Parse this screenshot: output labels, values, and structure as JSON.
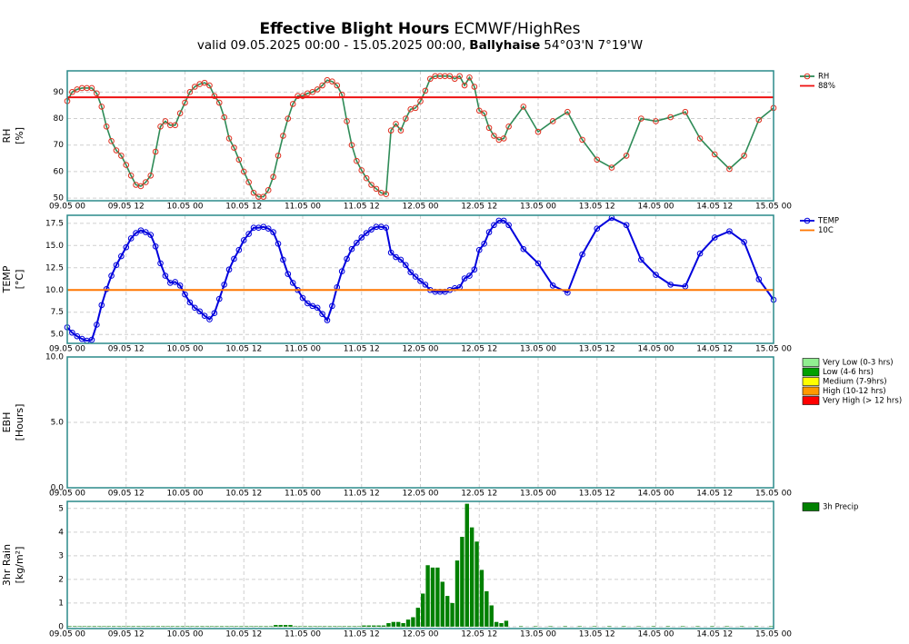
{
  "header": {
    "title": "Effective Blight Hours",
    "model": "ECMWF/HighRes",
    "validity": "valid 09.05.2025 00:00 - 15.05.2025 00:00,",
    "station": "Ballyhaise",
    "coords": "54°03'N 7°19'W"
  },
  "chart_data": [
    {
      "type": "line",
      "ylabel": [
        "RH",
        "[%]"
      ],
      "xlim": [
        0,
        144
      ],
      "ylim": [
        49,
        98
      ],
      "yticks": [
        50,
        60,
        70,
        80,
        90
      ],
      "grid": true,
      "xticks": [
        {
          "value": 0,
          "label": "09.05 00"
        },
        {
          "value": 12,
          "label": "09.05 12"
        },
        {
          "value": 24,
          "label": "10.05 00"
        },
        {
          "value": 36,
          "label": "10.05 12"
        },
        {
          "value": 48,
          "label": "11.05 00"
        },
        {
          "value": 60,
          "label": "11.05 12"
        },
        {
          "value": 72,
          "label": "12.05 00"
        },
        {
          "value": 84,
          "label": "12.05 12"
        },
        {
          "value": 96,
          "label": "13.05 00"
        },
        {
          "value": 108,
          "label": "13.05 12"
        },
        {
          "value": 120,
          "label": "14.05 00"
        },
        {
          "value": 132,
          "label": "14.05 12"
        },
        {
          "value": 144,
          "label": "15.05 00"
        }
      ],
      "x": [
        0,
        1,
        2,
        3,
        4,
        5,
        6,
        7,
        8,
        9,
        10,
        11,
        12,
        13,
        14,
        15,
        16,
        17,
        18,
        19,
        20,
        21,
        22,
        23,
        24,
        25,
        26,
        27,
        28,
        29,
        30,
        31,
        32,
        33,
        34,
        35,
        36,
        37,
        38,
        39,
        40,
        41,
        42,
        43,
        44,
        45,
        46,
        47,
        48,
        49,
        50,
        51,
        52,
        53,
        54,
        55,
        56,
        57,
        58,
        59,
        60,
        61,
        62,
        63,
        64,
        65,
        66,
        67,
        68,
        69,
        70,
        71,
        72,
        73,
        74,
        75,
        76,
        77,
        78,
        79,
        80,
        81,
        82,
        83,
        84,
        85,
        86,
        87,
        88,
        89,
        90,
        93,
        96,
        99,
        102,
        105,
        108,
        111,
        114,
        117,
        120,
        123,
        126,
        129,
        132,
        135,
        138,
        141,
        144
      ],
      "series": [
        {
          "name": "RH",
          "color": "#2e8b57",
          "marker_color": "#e03020",
          "values": [
            86.6,
            90,
            91,
            91.5,
            91.5,
            91.5,
            89.5,
            84.5,
            77,
            71.5,
            68,
            66,
            62.5,
            58.5,
            55,
            54.5,
            56,
            58.5,
            67.5,
            77,
            79,
            77.5,
            77.5,
            82,
            86,
            90,
            92,
            93,
            93.5,
            92.5,
            88.5,
            86,
            80.5,
            72.5,
            69,
            64.5,
            60,
            56,
            52,
            50.5,
            50.5,
            53,
            58,
            66,
            73.5,
            80,
            85.5,
            88.5,
            88.5,
            89.5,
            90,
            91,
            92.5,
            94.5,
            94,
            92.5,
            89,
            79,
            70,
            64,
            60.5,
            57.5,
            55,
            53.5,
            52,
            51.5,
            75.5,
            78,
            75.5,
            80,
            83.5,
            84,
            86.5,
            90.5,
            95,
            96,
            96,
            96,
            96,
            95,
            96,
            92.5,
            95.5,
            92,
            83,
            82,
            76.5,
            73.5,
            72,
            72.5,
            77,
            84.5,
            75,
            79,
            82.5,
            72,
            64.5,
            61.5,
            66,
            80,
            79,
            80.5,
            82.5,
            72.5,
            66.5,
            61,
            66,
            79.5,
            84
          ]
        },
        {
          "name": "88%",
          "color": "#ee1111",
          "value": 88
        }
      ]
    },
    {
      "type": "line",
      "ylabel": [
        "TEMP",
        "[°C]"
      ],
      "xlim": [
        0,
        144
      ],
      "ylim": [
        4.0,
        18.4
      ],
      "grid": true,
      "yticks": [
        {
          "value": 5,
          "label": "5.0"
        },
        {
          "value": 7.5,
          "label": "7.5"
        },
        {
          "value": 10,
          "label": "10.0"
        },
        {
          "value": 12.5,
          "label": "12.5"
        },
        {
          "value": 15,
          "label": "15.0"
        },
        {
          "value": 17.5,
          "label": "17.5"
        }
      ],
      "xticks": [
        {
          "value": 0,
          "label": "09.05 00"
        },
        {
          "value": 12,
          "label": "09.05 12"
        },
        {
          "value": 24,
          "label": "10.05 00"
        },
        {
          "value": 36,
          "label": "10.05 12"
        },
        {
          "value": 48,
          "label": "11.05 00"
        },
        {
          "value": 60,
          "label": "11.05 12"
        },
        {
          "value": 72,
          "label": "12.05 00"
        },
        {
          "value": 84,
          "label": "12.05 12"
        },
        {
          "value": 96,
          "label": "13.05 00"
        },
        {
          "value": 108,
          "label": "13.05 12"
        },
        {
          "value": 120,
          "label": "14.05 00"
        },
        {
          "value": 132,
          "label": "14.05 12"
        },
        {
          "value": 144,
          "label": "15.05 00"
        }
      ],
      "x": [
        0,
        1,
        2,
        3,
        4,
        5,
        6,
        7,
        8,
        9,
        10,
        11,
        12,
        13,
        14,
        15,
        16,
        17,
        18,
        19,
        20,
        21,
        22,
        23,
        24,
        25,
        26,
        27,
        28,
        29,
        30,
        31,
        32,
        33,
        34,
        35,
        36,
        37,
        38,
        39,
        40,
        41,
        42,
        43,
        44,
        45,
        46,
        47,
        48,
        49,
        50,
        51,
        52,
        53,
        54,
        55,
        56,
        57,
        58,
        59,
        60,
        61,
        62,
        63,
        64,
        65,
        66,
        67,
        68,
        69,
        70,
        71,
        72,
        73,
        74,
        75,
        76,
        77,
        78,
        79,
        80,
        81,
        82,
        83,
        84,
        85,
        86,
        87,
        88,
        89,
        90,
        93,
        96,
        99,
        102,
        105,
        108,
        111,
        114,
        117,
        120,
        123,
        126,
        129,
        132,
        135,
        138,
        141,
        144
      ],
      "series": [
        {
          "name": "TEMP",
          "color": "#0000dd",
          "marker_color": "#0000dd",
          "values": [
            5.8,
            5.2,
            4.8,
            4.5,
            4.3,
            4.4,
            6.1,
            8.3,
            10.1,
            11.6,
            12.8,
            13.8,
            14.8,
            15.8,
            16.4,
            16.7,
            16.5,
            16.2,
            14.9,
            13.0,
            11.6,
            10.8,
            10.9,
            10.5,
            9.5,
            8.6,
            8.0,
            7.6,
            7.1,
            6.7,
            7.4,
            9.0,
            10.6,
            12.3,
            13.5,
            14.5,
            15.6,
            16.3,
            17.0,
            17.0,
            17.1,
            16.9,
            16.5,
            15.2,
            13.4,
            11.8,
            10.8,
            10.0,
            9.1,
            8.5,
            8.2,
            8.0,
            7.3,
            6.6,
            8.2,
            10.3,
            12.1,
            13.5,
            14.6,
            15.3,
            15.9,
            16.4,
            16.8,
            17.1,
            17.1,
            17.0,
            14.2,
            13.7,
            13.4,
            12.8,
            12.0,
            11.5,
            11.0,
            10.6,
            10.0,
            9.8,
            9.8,
            9.8,
            10.0,
            10.2,
            10.3,
            11.3,
            11.6,
            12.3,
            14.5,
            15.2,
            16.5,
            17.3,
            17.8,
            17.8,
            17.3,
            14.6,
            13.0,
            10.5,
            9.7,
            14.0,
            16.9,
            18.1,
            17.3,
            13.4,
            11.7,
            10.6,
            10.4,
            14.1,
            15.9,
            16.6,
            15.4,
            11.2,
            8.9
          ]
        },
        {
          "name": "10C",
          "color": "#ff7700",
          "value": 10
        }
      ]
    },
    {
      "type": "bar",
      "ylabel": [
        "EBH",
        "[Hours]"
      ],
      "xlim": [
        0,
        144
      ],
      "ylim": [
        0,
        10
      ],
      "grid": true,
      "yticks": [
        {
          "value": 0,
          "label": "0.0"
        },
        {
          "value": 5,
          "label": "5.0"
        },
        {
          "value": 10,
          "label": "10.0"
        }
      ],
      "xticks": [
        {
          "value": 0,
          "label": "09.05 00"
        },
        {
          "value": 12,
          "label": "09.05 12"
        },
        {
          "value": 24,
          "label": "10.05 00"
        },
        {
          "value": 36,
          "label": "10.05 12"
        },
        {
          "value": 48,
          "label": "11.05 00"
        },
        {
          "value": 60,
          "label": "11.05 12"
        },
        {
          "value": 72,
          "label": "12.05 00"
        },
        {
          "value": 84,
          "label": "12.05 12"
        },
        {
          "value": 96,
          "label": "13.05 00"
        },
        {
          "value": 108,
          "label": "13.05 12"
        },
        {
          "value": 120,
          "label": "14.05 00"
        },
        {
          "value": 132,
          "label": "14.05 12"
        },
        {
          "value": 144,
          "label": "15.05 00"
        }
      ],
      "series": [
        {
          "name": "Very Low (0-3 hrs)",
          "color": "#90ee90"
        },
        {
          "name": "Low (4-6 hrs)",
          "color": "#00a000"
        },
        {
          "name": "Medium (7-9hrs)",
          "color": "#ffff00"
        },
        {
          "name": "High (10-12 hrs)",
          "color": "#ff9900"
        },
        {
          "name": "Very High (> 12 hrs)",
          "color": "#ff0000"
        }
      ]
    },
    {
      "type": "bar",
      "ylabel": [
        "3hr Rain",
        "[kg/m²]"
      ],
      "xlim": [
        0,
        144
      ],
      "ylim": [
        -0.08,
        5.3
      ],
      "yticks": [
        0,
        1,
        2,
        3,
        4,
        5
      ],
      "grid": true,
      "xticks": [
        {
          "value": 0,
          "label": "09.05 00"
        },
        {
          "value": 12,
          "label": "09.05 12"
        },
        {
          "value": 24,
          "label": "10.05 00"
        },
        {
          "value": 36,
          "label": "10.05 12"
        },
        {
          "value": 48,
          "label": "11.05 00"
        },
        {
          "value": 60,
          "label": "11.05 12"
        },
        {
          "value": 72,
          "label": "12.05 00"
        },
        {
          "value": 84,
          "label": "12.05 12"
        },
        {
          "value": 96,
          "label": "13.05 00"
        },
        {
          "value": 108,
          "label": "13.05 12"
        },
        {
          "value": 120,
          "label": "14.05 00"
        },
        {
          "value": 132,
          "label": "14.05 12"
        },
        {
          "value": 144,
          "label": "15.05 00"
        }
      ],
      "x": [
        1,
        2,
        3,
        4,
        5,
        6,
        7,
        8,
        9,
        10,
        11,
        12,
        13,
        14,
        15,
        16,
        17,
        18,
        19,
        20,
        21,
        22,
        23,
        24,
        25,
        26,
        27,
        28,
        29,
        30,
        31,
        32,
        33,
        34,
        35,
        36,
        37,
        38,
        39,
        40,
        41,
        42,
        43,
        44,
        45,
        46,
        47,
        48,
        49,
        50,
        51,
        52,
        53,
        54,
        55,
        56,
        57,
        58,
        59,
        60,
        61,
        62,
        63,
        64,
        65,
        66,
        67,
        68,
        69,
        70,
        71,
        72,
        73,
        74,
        75,
        76,
        77,
        78,
        79,
        80,
        81,
        82,
        83,
        84,
        85,
        86,
        87,
        88,
        89,
        90,
        93,
        96,
        99,
        102,
        105,
        108,
        111,
        114,
        117,
        120,
        123,
        126,
        129,
        132,
        135,
        138,
        141,
        144
      ],
      "series": [
        {
          "name": "3h Precip",
          "color": "#008000",
          "values": [
            0.02,
            0.02,
            0.02,
            0.02,
            0.02,
            0.02,
            0.02,
            0.02,
            0.02,
            0.02,
            0.02,
            0.02,
            0.02,
            0.02,
            0.02,
            0.02,
            0.02,
            0.02,
            0.02,
            0.02,
            0.02,
            0.02,
            0.02,
            0.02,
            0.02,
            0.02,
            0.02,
            0.02,
            0.02,
            0.02,
            0.02,
            0.02,
            0.02,
            0.02,
            0.02,
            0.02,
            0.02,
            0.02,
            0.02,
            0.02,
            0.02,
            0.02,
            0.07,
            0.07,
            0.07,
            0.07,
            0.02,
            0.02,
            0.02,
            0.02,
            0.02,
            0.02,
            0.02,
            0.02,
            0.02,
            0.02,
            0.02,
            0.02,
            0.02,
            0.02,
            0.05,
            0.05,
            0.05,
            0.05,
            0.05,
            0.15,
            0.2,
            0.2,
            0.15,
            0.3,
            0.4,
            0.8,
            1.4,
            2.6,
            2.5,
            2.5,
            1.9,
            1.3,
            1.0,
            2.8,
            3.8,
            5.2,
            4.2,
            3.6,
            2.4,
            1.5,
            0.9,
            0.2,
            0.15,
            0.25,
            0.02,
            0.02,
            0.02,
            0.02,
            0.02,
            0.02,
            0.02,
            0.02,
            0.02,
            0.02,
            0.02,
            0.02,
            0.02,
            0.02,
            0.02,
            0.02,
            0.02,
            0.02
          ]
        }
      ]
    }
  ]
}
